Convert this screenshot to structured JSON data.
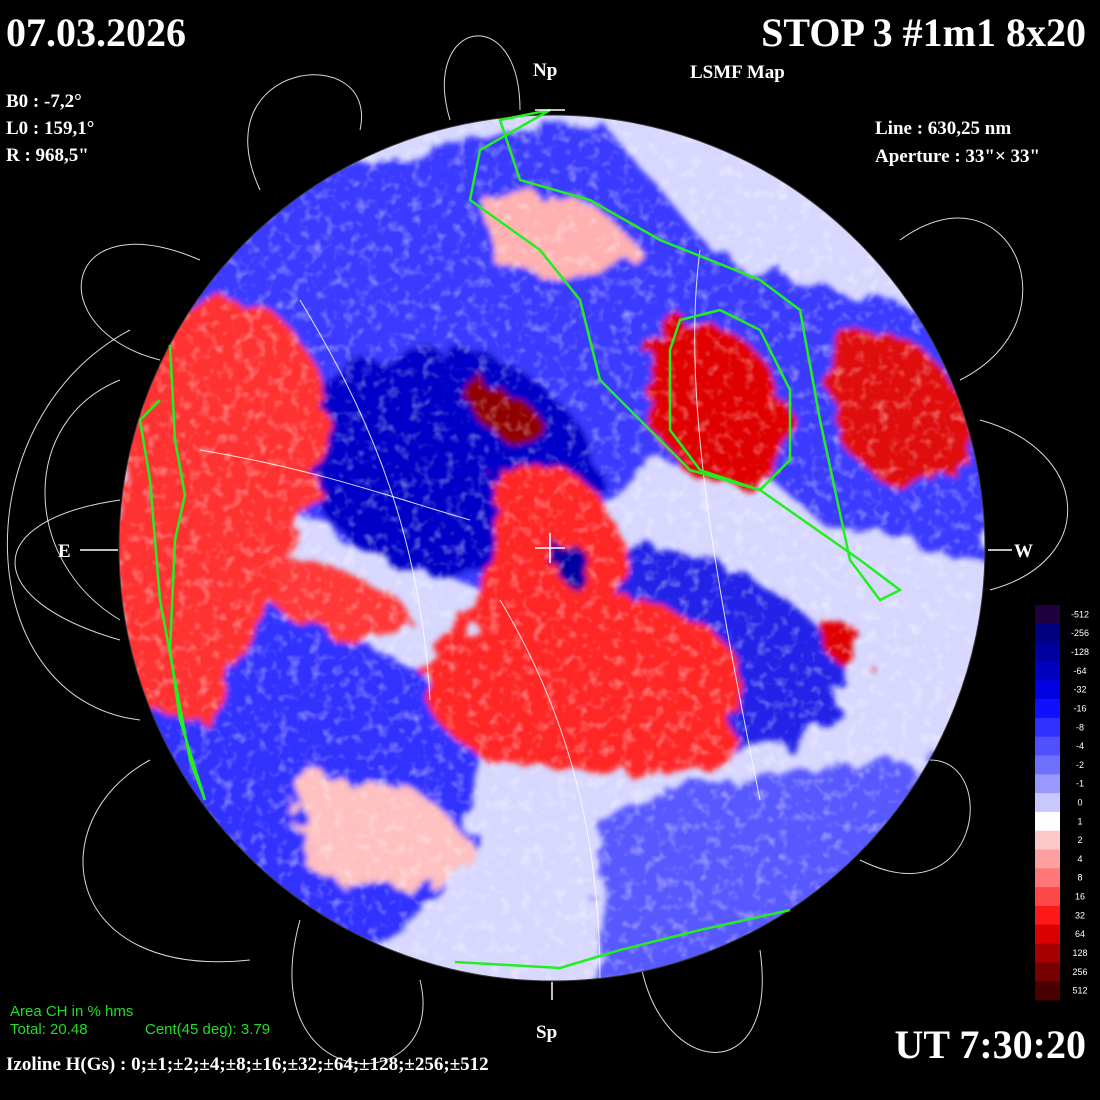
{
  "header": {
    "date": "07.03.2026",
    "title": "STOP 3 #1m1 8x20",
    "subtitle": "LSMF  Map"
  },
  "params_left": [
    "B0 : -7,2°",
    "L0 : 159,1°",
    "R  : 968,5\""
  ],
  "params_right": [
    "Line :  630,25 nm",
    "Aperture : 33\"× 33\""
  ],
  "directions": {
    "north": "Np",
    "south": "Sp",
    "east": "E",
    "west": "W"
  },
  "coronal_holes": {
    "title": "Area CH in % hms",
    "total": "Total: 20.48",
    "central": "Cent(45 deg): 3.79"
  },
  "isolines": "Izoline H(Gs) : 0;±1;±2;±4;±8;±16;±32;±64;±128;±256;±512",
  "time": "UT 7:30:20",
  "colorbar": {
    "ticks": [
      -512,
      -256,
      -128,
      -64,
      -32,
      -16,
      -8,
      -4,
      -2,
      -1,
      0,
      1,
      2,
      4,
      8,
      16,
      32,
      64,
      128,
      256,
      512
    ],
    "colors": [
      "#200040",
      "#000080",
      "#0000a0",
      "#0000c0",
      "#0000e0",
      "#1010ff",
      "#3030ff",
      "#5050ff",
      "#7070ff",
      "#9898ff",
      "#c8c8ff",
      "#ffffff",
      "#ffc8c8",
      "#ffa0a0",
      "#ff7878",
      "#ff4848",
      "#ff1818",
      "#d80000",
      "#a80000",
      "#780000",
      "#480000"
    ]
  }
}
